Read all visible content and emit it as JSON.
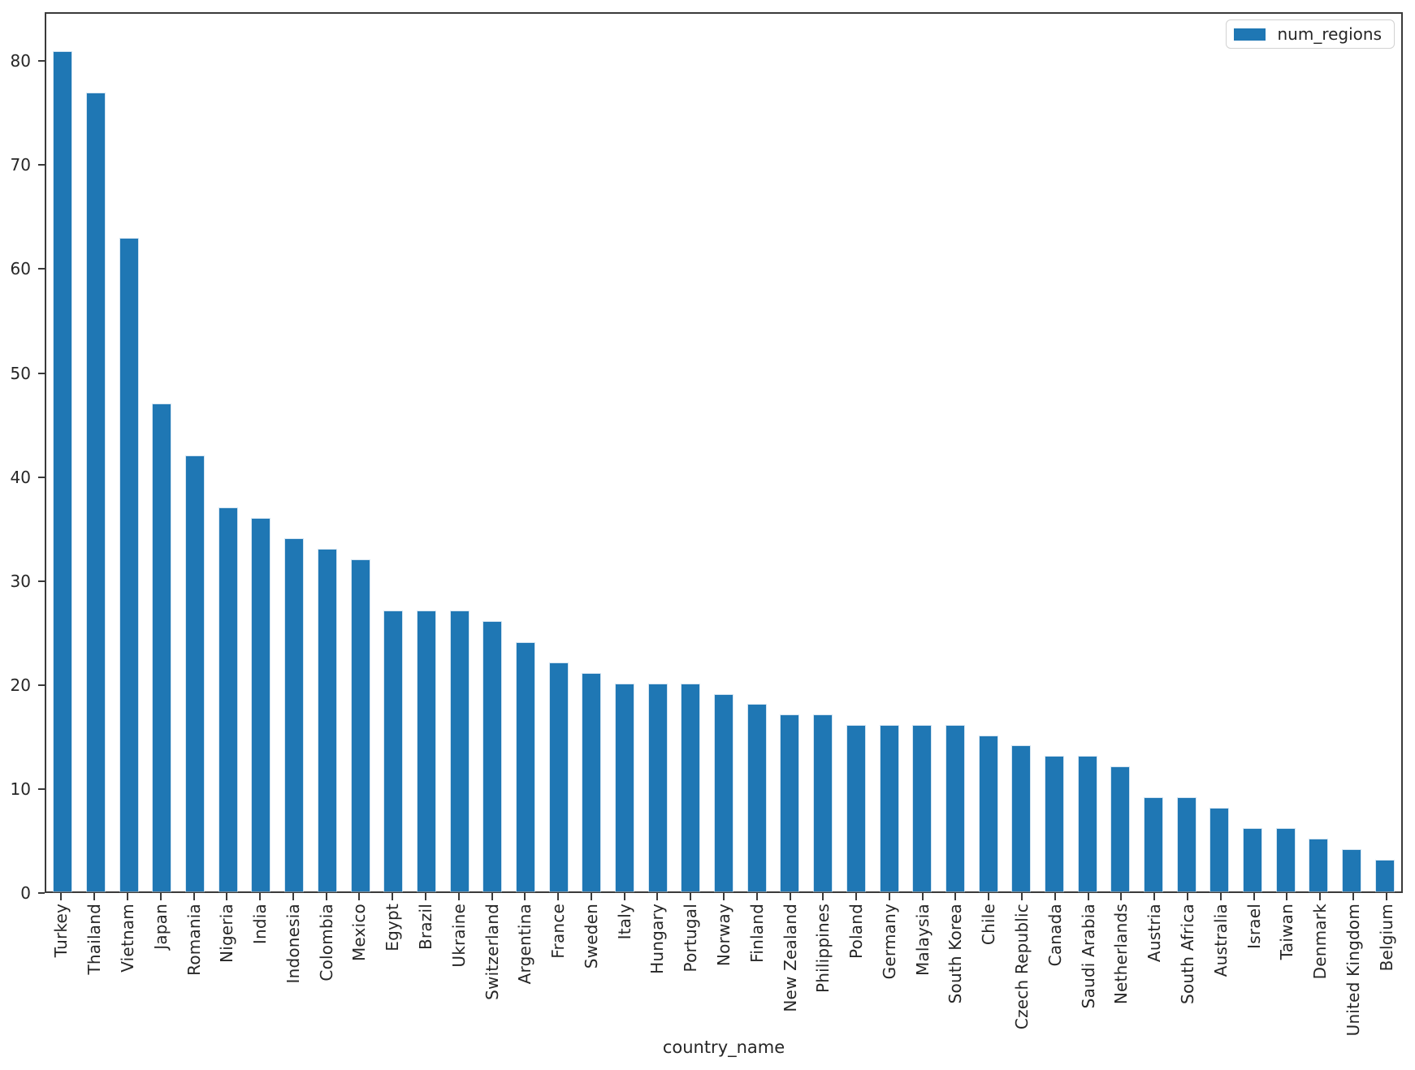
{
  "figure": {
    "background": "#ffffff",
    "text_color": "#262626",
    "spine_color": "#3a3a3a"
  },
  "chart_data": {
    "type": "bar",
    "title": "",
    "xlabel": "country_name",
    "ylabel": "",
    "legend_label": "num_regions",
    "legend_position": "upper right",
    "grid": false,
    "bar_color": "#1f77b4",
    "x_tick_rotation": 90,
    "categories": [
      "Turkey",
      "Thailand",
      "Vietnam",
      "Japan",
      "Romania",
      "Nigeria",
      "India",
      "Indonesia",
      "Colombia",
      "Mexico",
      "Egypt",
      "Brazil",
      "Ukraine",
      "Switzerland",
      "Argentina",
      "France",
      "Sweden",
      "Italy",
      "Hungary",
      "Portugal",
      "Norway",
      "Finland",
      "New Zealand",
      "Philippines",
      "Poland",
      "Germany",
      "Malaysia",
      "South Korea",
      "Chile",
      "Czech Republic",
      "Canada",
      "Saudi Arabia",
      "Netherlands",
      "Austria",
      "South Africa",
      "Australia",
      "Israel",
      "Taiwan",
      "Denmark",
      "United Kingdom",
      "Belgium"
    ],
    "values": [
      81,
      77,
      63,
      47,
      42,
      37,
      36,
      34,
      33,
      32,
      27,
      27,
      27,
      26,
      24,
      22,
      21,
      20,
      20,
      20,
      19,
      18,
      17,
      17,
      16,
      16,
      16,
      16,
      15,
      14,
      13,
      13,
      12,
      9,
      9,
      8,
      6,
      6,
      5,
      4,
      3
    ],
    "yticks": [
      0,
      10,
      20,
      30,
      40,
      50,
      60,
      70,
      80
    ],
    "ylim": [
      0,
      84.7
    ]
  }
}
